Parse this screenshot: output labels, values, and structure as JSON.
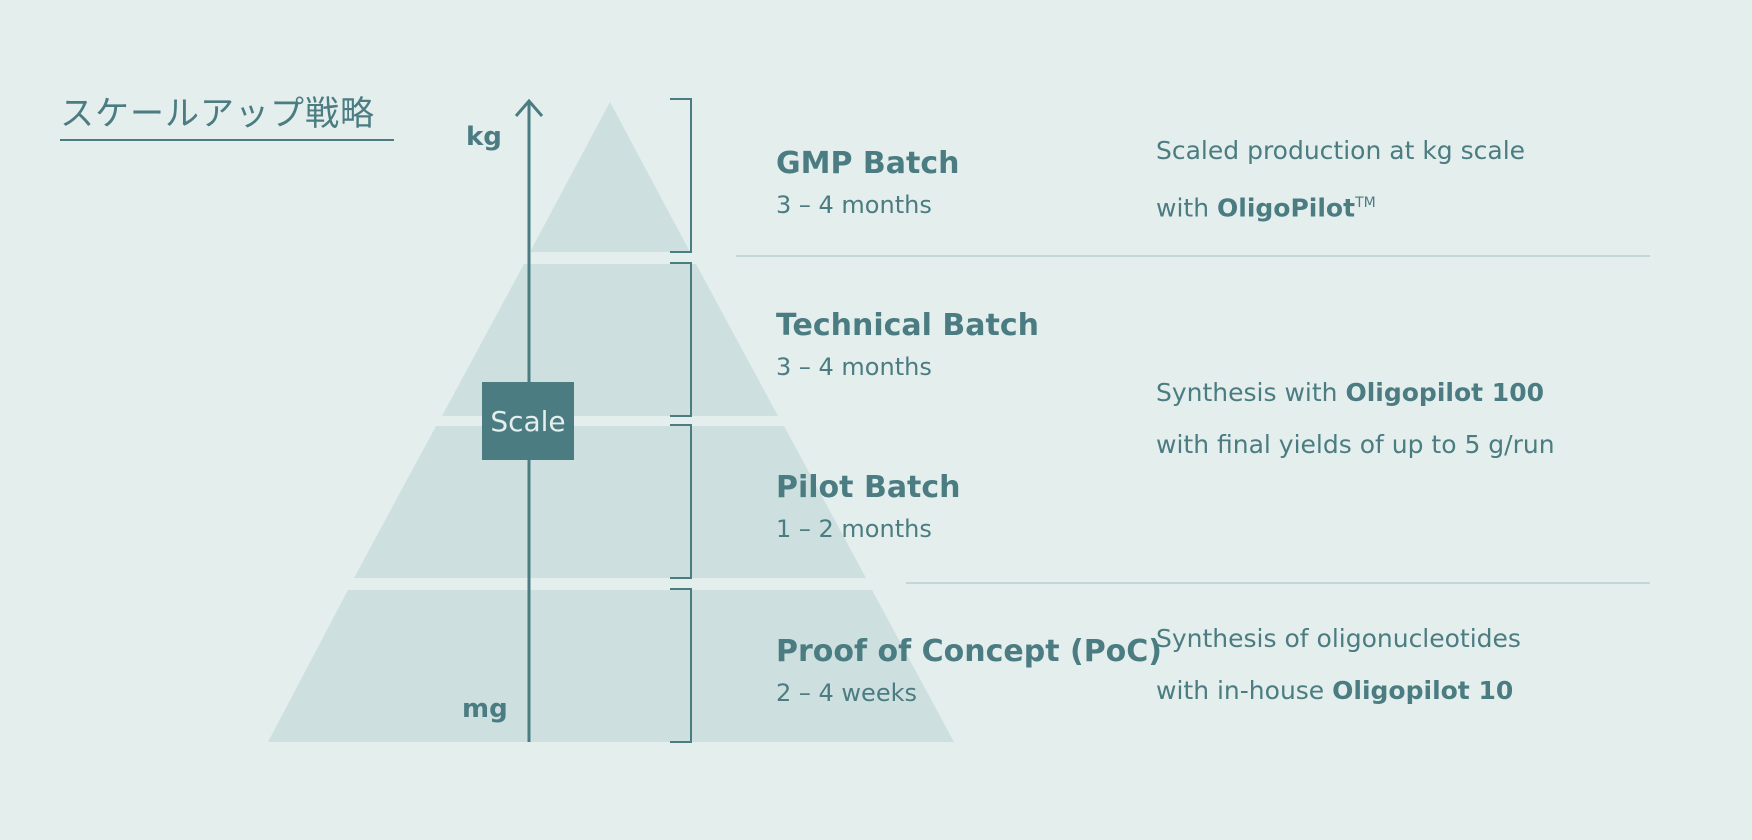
{
  "title": "スケールアップ戦略",
  "axis": {
    "top_label": "kg",
    "bottom_label": "mg",
    "scale_label": "Scale"
  },
  "tiers": [
    {
      "name": "GMP Batch",
      "duration": "3 – 4 months"
    },
    {
      "name": "Technical Batch",
      "duration": "3 – 4 months"
    },
    {
      "name": "Pilot Batch",
      "duration": "1 – 2 months"
    },
    {
      "name": "Proof of Concept (PoC)",
      "duration": "2 – 4 weeks"
    }
  ],
  "descriptions": {
    "gmp": {
      "line1": "Scaled production at kg scale",
      "line2_prefix": "with ",
      "line2_bold": "OligoPilot",
      "line2_sup": "TM"
    },
    "technical_pilot": {
      "line1_prefix": "Synthesis with ",
      "line1_bold": "Oligopilot 100",
      "line2": "with final yields of up to 5 g/run"
    },
    "poc": {
      "line1": "Synthesis of oligonucleotides",
      "line2_prefix": "with in-house ",
      "line2_bold": "Oligopilot 10"
    }
  },
  "colors": {
    "background": "#e4eeed",
    "accent": "#4a7c82",
    "pyramid_fill": "#cddfdf",
    "divider": "#c5d6d6"
  }
}
